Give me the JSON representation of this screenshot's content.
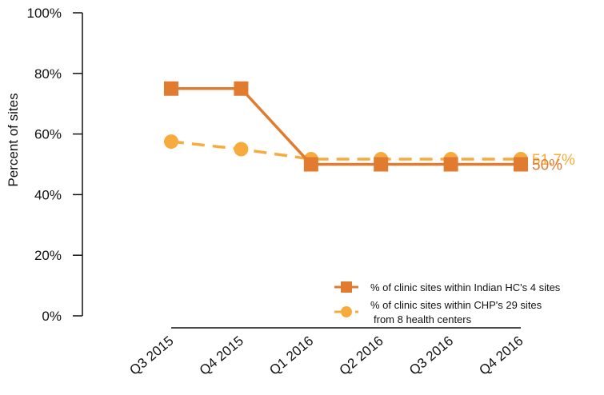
{
  "chart_data": {
    "type": "line",
    "ylabel": "Percent of sites",
    "xlabel": "",
    "ylim": [
      0,
      100
    ],
    "yticks": [
      0,
      20,
      40,
      60,
      80,
      100
    ],
    "ytick_labels": [
      "0%",
      "20%",
      "40%",
      "60%",
      "80%",
      "100%"
    ],
    "categories": [
      "Q3 2015",
      "Q4 2015",
      "Q1 2016",
      "Q2 2016",
      "Q3 2016",
      "Q4 2016"
    ],
    "grid": false,
    "legend_position": "bottom-right",
    "series": [
      {
        "name": "% of clinic sites within Indian HC's 4 sites",
        "values": [
          75,
          75,
          50,
          50,
          50,
          50
        ],
        "color": "#e07b30",
        "line_style": "solid",
        "marker": "square",
        "end_label": "50%"
      },
      {
        "name_lines": [
          "% of clinic sites within CHP's 29 sites",
          "from 8 health centers"
        ],
        "values": [
          57.5,
          55,
          51.7,
          51.7,
          51.7,
          51.7
        ],
        "color": "#f7ab3c",
        "line_style": "dashed",
        "marker": "circle",
        "end_label": "51.7%"
      }
    ]
  }
}
